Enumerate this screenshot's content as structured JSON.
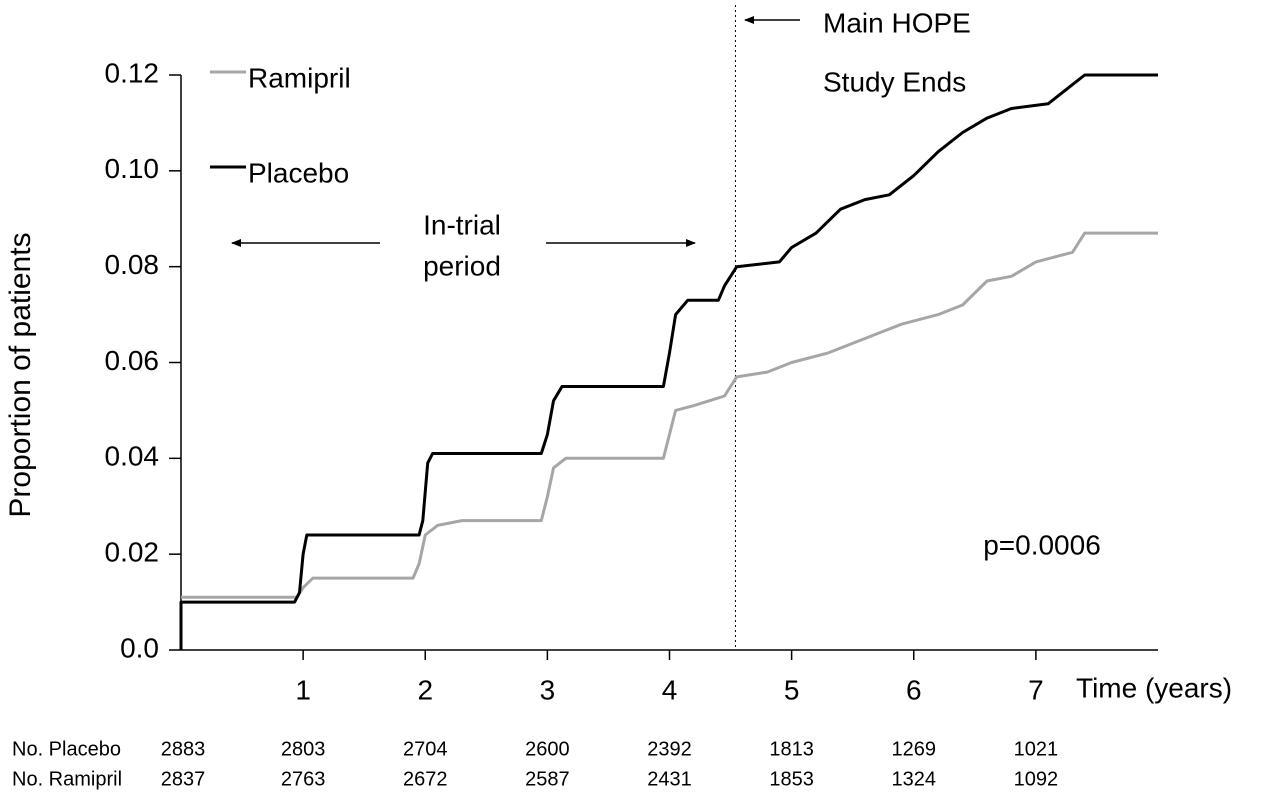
{
  "chart_data": {
    "type": "line",
    "ylabel": "Proportion of patients",
    "xlabel": "Time (years)",
    "xlim": [
      0,
      8
    ],
    "ylim": [
      0,
      0.12
    ],
    "xticks": [
      1,
      2,
      3,
      4,
      5,
      6,
      7
    ],
    "yticks": [
      {
        "value": 0,
        "label": "0.0"
      },
      0.02,
      0.04,
      0.06,
      0.08,
      {
        "value": 0.1,
        "label": "0.10"
      },
      0.12
    ],
    "series": [
      {
        "name": "Ramipril",
        "color": "#a6a6a6",
        "x": [
          0,
          0.95,
          1.0,
          1.08,
          1.9,
          1.95,
          2.0,
          2.1,
          2.3,
          2.95,
          3.0,
          3.05,
          3.15,
          3.95,
          4.0,
          4.05,
          4.2,
          4.45,
          4.55,
          4.8,
          5.0,
          5.3,
          5.6,
          5.9,
          6.2,
          6.4,
          6.6,
          6.8,
          7.0,
          7.3,
          7.4,
          8.0
        ],
        "values": [
          0.011,
          0.011,
          0.013,
          0.015,
          0.015,
          0.018,
          0.024,
          0.026,
          0.027,
          0.027,
          0.032,
          0.038,
          0.04,
          0.04,
          0.045,
          0.05,
          0.051,
          0.053,
          0.057,
          0.058,
          0.06,
          0.062,
          0.065,
          0.068,
          0.07,
          0.072,
          0.077,
          0.078,
          0.081,
          0.083,
          0.087,
          0.087
        ]
      },
      {
        "name": "Placebo",
        "color": "#000000",
        "x": [
          0,
          0,
          0.93,
          0.97,
          1.0,
          1.03,
          1.95,
          1.98,
          2.02,
          2.06,
          2.95,
          3.0,
          3.05,
          3.12,
          3.95,
          4.0,
          4.05,
          4.15,
          4.4,
          4.45,
          4.55,
          4.9,
          5.0,
          5.2,
          5.4,
          5.6,
          5.8,
          6.0,
          6.2,
          6.4,
          6.6,
          6.8,
          7.1,
          7.3,
          7.4,
          8.0
        ],
        "values": [
          0,
          0.01,
          0.01,
          0.012,
          0.02,
          0.024,
          0.024,
          0.027,
          0.039,
          0.041,
          0.041,
          0.045,
          0.052,
          0.055,
          0.055,
          0.062,
          0.07,
          0.073,
          0.073,
          0.076,
          0.08,
          0.081,
          0.084,
          0.087,
          0.092,
          0.094,
          0.095,
          0.099,
          0.104,
          0.108,
          0.111,
          0.113,
          0.114,
          0.118,
          0.12,
          0.12
        ]
      }
    ],
    "vline": 4.54,
    "annotations": {
      "end_line1": "Main HOPE",
      "end_line2": "Study Ends",
      "trial_line1": "In-trial",
      "trial_line2": "period",
      "p_value": "p=0.0006"
    },
    "risk_table": [
      {
        "label": "No. Placebo",
        "values": [
          2883,
          2803,
          2704,
          2600,
          2392,
          1813,
          1269,
          1021
        ]
      },
      {
        "label": "No. Ramipril",
        "values": [
          2837,
          2763,
          2672,
          2587,
          2431,
          1853,
          1324,
          1092
        ]
      }
    ]
  }
}
